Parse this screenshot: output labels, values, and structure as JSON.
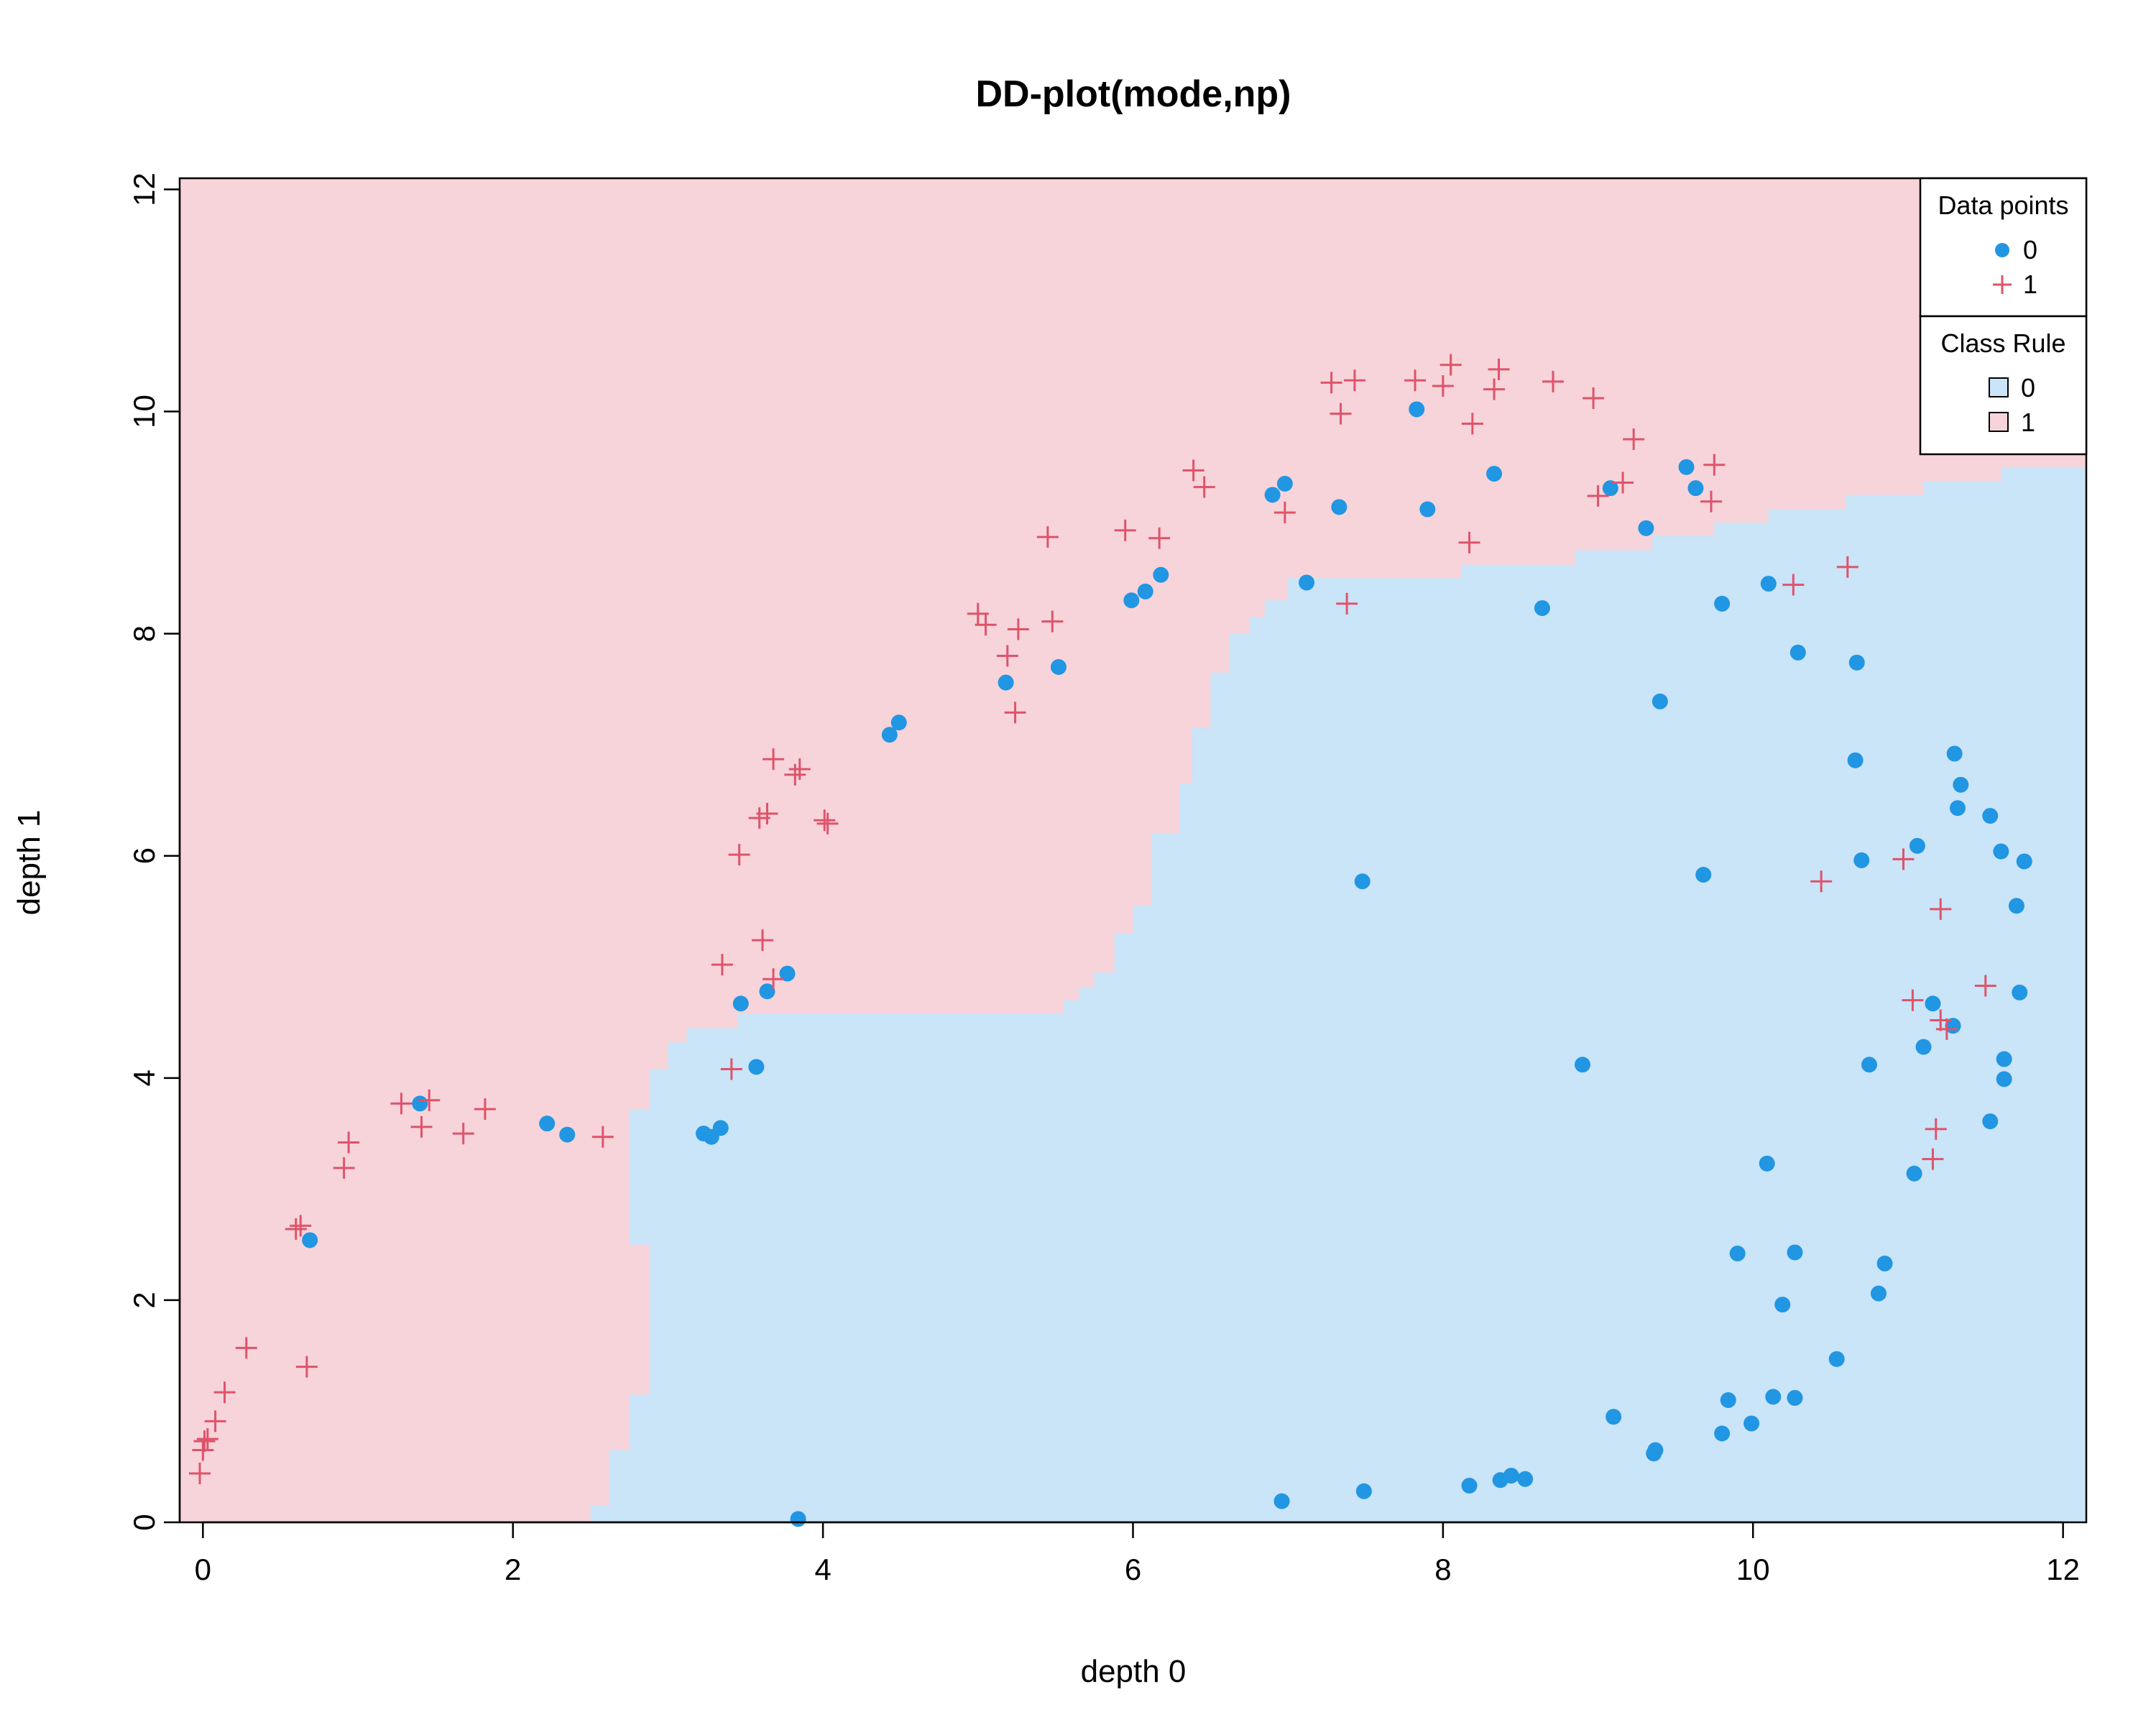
{
  "colors": {
    "class0_point": "#2196E3",
    "class1_point": "#DF536B",
    "class0_region": "#CAE4F8",
    "class1_region": "#F6D4DA"
  },
  "chart_data": {
    "type": "scatter",
    "title": "DD-plot(mode,np)",
    "xlabel": "depth 0",
    "ylabel": "depth 1",
    "xlim": [
      -0.15,
      12.15
    ],
    "ylim": [
      0,
      12.1
    ],
    "xticks": [
      0,
      2,
      4,
      6,
      8,
      10,
      12
    ],
    "yticks": [
      0,
      2,
      4,
      6,
      8,
      10,
      12
    ],
    "grid": false,
    "legend_points": {
      "title": "Data points",
      "position": "top-right",
      "entries": [
        {
          "label": "0",
          "marker": "filled-circle",
          "color": "#2196E3"
        },
        {
          "label": "1",
          "marker": "plus",
          "color": "#DF536B"
        }
      ]
    },
    "legend_rule": {
      "title": "Class Rule",
      "position": "top-right",
      "entries": [
        {
          "label": "0",
          "color": "#CAE4F8"
        },
        {
          "label": "1",
          "color": "#F6D4DA"
        }
      ]
    },
    "decision_boundary": [
      [
        2.5,
        0.0
      ],
      [
        2.5,
        0.15
      ],
      [
        2.62,
        0.15
      ],
      [
        2.62,
        0.65
      ],
      [
        2.75,
        0.65
      ],
      [
        2.75,
        1.15
      ],
      [
        2.88,
        1.15
      ],
      [
        2.88,
        2.5
      ],
      [
        2.75,
        2.5
      ],
      [
        2.75,
        3.72
      ],
      [
        2.88,
        3.72
      ],
      [
        2.88,
        4.08
      ],
      [
        3.0,
        4.08
      ],
      [
        3.0,
        4.32
      ],
      [
        3.12,
        4.32
      ],
      [
        3.12,
        4.45
      ],
      [
        3.45,
        4.45
      ],
      [
        3.45,
        4.58
      ],
      [
        5.55,
        4.58
      ],
      [
        5.55,
        4.7
      ],
      [
        5.65,
        4.7
      ],
      [
        5.65,
        4.82
      ],
      [
        5.75,
        4.82
      ],
      [
        5.75,
        4.95
      ],
      [
        5.88,
        4.95
      ],
      [
        5.88,
        5.3
      ],
      [
        6.0,
        5.3
      ],
      [
        6.0,
        5.55
      ],
      [
        6.12,
        5.55
      ],
      [
        6.12,
        6.2
      ],
      [
        6.3,
        6.2
      ],
      [
        6.3,
        6.65
      ],
      [
        6.38,
        6.65
      ],
      [
        6.38,
        7.15
      ],
      [
        6.5,
        7.15
      ],
      [
        6.5,
        7.65
      ],
      [
        6.62,
        7.65
      ],
      [
        6.62,
        8.0
      ],
      [
        6.75,
        8.0
      ],
      [
        6.75,
        8.15
      ],
      [
        6.85,
        8.15
      ],
      [
        6.85,
        8.3
      ],
      [
        7.0,
        8.3
      ],
      [
        7.0,
        8.5
      ],
      [
        8.12,
        8.5
      ],
      [
        8.12,
        8.62
      ],
      [
        8.85,
        8.62
      ],
      [
        8.85,
        8.75
      ],
      [
        9.35,
        8.75
      ],
      [
        9.35,
        8.88
      ],
      [
        9.75,
        8.88
      ],
      [
        9.75,
        9.0
      ],
      [
        10.1,
        9.0
      ],
      [
        10.1,
        9.12
      ],
      [
        10.6,
        9.12
      ],
      [
        10.6,
        9.25
      ],
      [
        11.1,
        9.25
      ],
      [
        11.1,
        9.37
      ],
      [
        11.6,
        9.37
      ],
      [
        11.6,
        9.5
      ],
      [
        12.15,
        9.5
      ]
    ],
    "series": [
      {
        "name": "0",
        "marker": "filled-circle",
        "color": "#2196E3",
        "points": [
          [
            0.69,
            2.54
          ],
          [
            1.4,
            3.77
          ],
          [
            2.22,
            3.59
          ],
          [
            2.35,
            3.49
          ],
          [
            3.23,
            3.5
          ],
          [
            3.28,
            3.47
          ],
          [
            3.34,
            3.55
          ],
          [
            3.47,
            4.67
          ],
          [
            3.57,
            4.1
          ],
          [
            3.64,
            4.78
          ],
          [
            3.77,
            4.94
          ],
          [
            3.84,
            0.03
          ],
          [
            4.43,
            7.09
          ],
          [
            4.49,
            7.2
          ],
          [
            5.18,
            7.56
          ],
          [
            5.52,
            7.7
          ],
          [
            5.99,
            8.3
          ],
          [
            6.08,
            8.38
          ],
          [
            6.18,
            8.53
          ],
          [
            6.9,
            9.25
          ],
          [
            6.98,
            9.35
          ],
          [
            6.96,
            0.19
          ],
          [
            7.12,
            8.46
          ],
          [
            7.33,
            9.14
          ],
          [
            7.48,
            5.77
          ],
          [
            7.49,
            0.28
          ],
          [
            7.83,
            10.02
          ],
          [
            7.9,
            9.12
          ],
          [
            8.17,
            0.33
          ],
          [
            8.33,
            9.44
          ],
          [
            8.37,
            0.38
          ],
          [
            8.44,
            0.42
          ],
          [
            8.53,
            0.39
          ],
          [
            8.64,
            8.23
          ],
          [
            8.9,
            4.12
          ],
          [
            9.08,
            9.31
          ],
          [
            9.1,
            0.95
          ],
          [
            9.31,
            8.95
          ],
          [
            9.36,
            0.62
          ],
          [
            9.37,
            0.65
          ],
          [
            9.4,
            7.39
          ],
          [
            9.57,
            9.5
          ],
          [
            9.63,
            9.31
          ],
          [
            9.68,
            5.83
          ],
          [
            9.8,
            8.27
          ],
          [
            9.8,
            0.8
          ],
          [
            9.84,
            1.1
          ],
          [
            9.9,
            2.42
          ],
          [
            9.99,
            0.89
          ],
          [
            10.1,
            8.45
          ],
          [
            10.09,
            3.23
          ],
          [
            10.13,
            1.13
          ],
          [
            10.19,
            1.96
          ],
          [
            10.27,
            1.12
          ],
          [
            10.27,
            2.43
          ],
          [
            10.29,
            7.83
          ],
          [
            10.54,
            1.47
          ],
          [
            10.66,
            6.86
          ],
          [
            10.67,
            7.74
          ],
          [
            10.7,
            5.96
          ],
          [
            10.75,
            4.12
          ],
          [
            10.81,
            2.06
          ],
          [
            10.85,
            2.33
          ],
          [
            11.04,
            3.14
          ],
          [
            11.06,
            6.09
          ],
          [
            11.1,
            4.28
          ],
          [
            11.16,
            4.67
          ],
          [
            11.29,
            4.47
          ],
          [
            11.3,
            6.92
          ],
          [
            11.32,
            6.43
          ],
          [
            11.34,
            6.64
          ],
          [
            11.53,
            3.61
          ],
          [
            11.53,
            6.36
          ],
          [
            11.6,
            6.04
          ],
          [
            11.62,
            4.17
          ],
          [
            11.62,
            3.99
          ],
          [
            11.7,
            5.55
          ],
          [
            11.72,
            4.77
          ],
          [
            11.75,
            5.95
          ]
        ]
      },
      {
        "name": "1",
        "marker": "plus",
        "color": "#DF536B",
        "points": [
          [
            -0.02,
            0.44
          ],
          [
            0.0,
            0.65
          ],
          [
            0.01,
            0.73
          ],
          [
            0.03,
            0.75
          ],
          [
            0.08,
            0.91
          ],
          [
            0.14,
            1.17
          ],
          [
            0.28,
            1.57
          ],
          [
            0.6,
            2.64
          ],
          [
            0.63,
            2.67
          ],
          [
            0.67,
            1.4
          ],
          [
            0.91,
            3.19
          ],
          [
            0.94,
            3.42
          ],
          [
            1.28,
            3.77
          ],
          [
            1.41,
            3.56
          ],
          [
            1.46,
            3.8
          ],
          [
            1.68,
            3.5
          ],
          [
            1.82,
            3.72
          ],
          [
            2.58,
            3.47
          ],
          [
            3.35,
            5.02
          ],
          [
            3.41,
            4.08
          ],
          [
            3.46,
            6.01
          ],
          [
            3.59,
            6.34
          ],
          [
            3.61,
            5.24
          ],
          [
            3.64,
            6.38
          ],
          [
            3.68,
            4.89
          ],
          [
            3.68,
            6.87
          ],
          [
            3.82,
            6.73
          ],
          [
            3.85,
            6.78
          ],
          [
            4.01,
            6.32
          ],
          [
            4.03,
            6.29
          ],
          [
            5.0,
            8.18
          ],
          [
            5.05,
            8.08
          ],
          [
            5.19,
            7.8
          ],
          [
            5.24,
            7.29
          ],
          [
            5.26,
            8.04
          ],
          [
            5.45,
            8.87
          ],
          [
            5.48,
            8.11
          ],
          [
            5.95,
            8.93
          ],
          [
            6.17,
            8.86
          ],
          [
            6.39,
            9.47
          ],
          [
            6.46,
            9.32
          ],
          [
            6.98,
            9.09
          ],
          [
            7.28,
            10.26
          ],
          [
            7.34,
            9.98
          ],
          [
            7.38,
            8.27
          ],
          [
            7.43,
            10.28
          ],
          [
            7.82,
            10.28
          ],
          [
            8.0,
            10.23
          ],
          [
            8.05,
            10.42
          ],
          [
            8.17,
            8.82
          ],
          [
            8.19,
            9.89
          ],
          [
            8.33,
            10.2
          ],
          [
            8.36,
            10.38
          ],
          [
            8.71,
            10.27
          ],
          [
            8.97,
            10.12
          ],
          [
            9.0,
            9.24
          ],
          [
            9.16,
            9.36
          ],
          [
            9.23,
            9.75
          ],
          [
            9.73,
            9.19
          ],
          [
            9.75,
            9.52
          ],
          [
            10.26,
            8.44
          ],
          [
            10.61,
            8.6
          ],
          [
            10.44,
            5.77
          ],
          [
            10.97,
            5.97
          ],
          [
            11.03,
            4.7
          ],
          [
            11.16,
            3.27
          ],
          [
            11.18,
            3.54
          ],
          [
            11.21,
            5.52
          ],
          [
            11.21,
            4.52
          ],
          [
            11.25,
            4.44
          ],
          [
            11.5,
            4.83
          ]
        ]
      }
    ]
  }
}
